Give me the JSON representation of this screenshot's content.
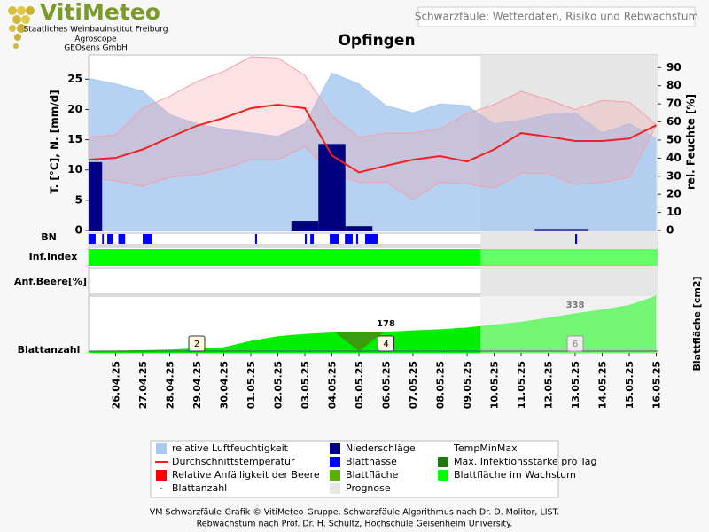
{
  "header": {
    "logo": "VitiMeteo",
    "institutions": [
      "Staatliches Weinbauinstitut Freiburg",
      "Agroscope",
      "GEOsens GmbH"
    ],
    "subtitle": "Schwarzfäule: Wetterdaten, Risiko und Rebwachstum"
  },
  "chart_data": {
    "type": "combo",
    "title": "Opfingen",
    "categories": [
      null,
      "26.04.25",
      "27.04.25",
      "28.04.25",
      "29.04.25",
      "30.04.25",
      "01.05.25",
      "02.05.25",
      "03.05.25",
      "04.05.25",
      "05.05.25",
      "06.05.25",
      "07.05.25",
      "08.05.25",
      "09.05.25",
      "10.05.25",
      "11.05.25",
      "12.05.25",
      "13.05.25",
      "14.05.25",
      "15.05.25",
      "16.05.25"
    ],
    "forecast_from": "10.05.25",
    "forecast_color": "#e6e6e6",
    "y_label": "T. [°C], N. [mm/d]",
    "y2_label": "rel. Feuchte [%]",
    "ylim": [
      0,
      29
    ],
    "yticks": [
      0,
      5,
      10,
      15,
      20,
      25
    ],
    "y2lim": [
      0,
      97
    ],
    "y2ticks": [
      0,
      10,
      20,
      30,
      40,
      50,
      60,
      70,
      80,
      90
    ],
    "series": [
      {
        "type": "area",
        "axis": "y2",
        "color": "#a9c9ee",
        "values": [
          84,
          81,
          77,
          64,
          59,
          56,
          54,
          52,
          59,
          87,
          81,
          69,
          65,
          70,
          69,
          59,
          61,
          64,
          65,
          54,
          59,
          51
        ]
      },
      {
        "type": "band",
        "axis": "y",
        "color": "#f4a0a8",
        "high": [
          15.4,
          15.8,
          20.2,
          22.2,
          24.6,
          26.3,
          28.7,
          28.5,
          25.6,
          19,
          15.4,
          16.1,
          16.1,
          16.8,
          19.3,
          20.8,
          23,
          21.6,
          20,
          21.5,
          21.2,
          17.5
        ],
        "low": [
          8.8,
          8.2,
          7.3,
          8.8,
          9.2,
          10.2,
          11.7,
          11.7,
          13.9,
          9.5,
          8,
          8,
          5.1,
          8,
          7.7,
          7,
          9.5,
          9.5,
          7.6,
          8,
          8.8,
          17.4
        ]
      },
      {
        "type": "bar",
        "axis": "y",
        "color": "#000080",
        "values": [
          11.3,
          0,
          0,
          0,
          0,
          0,
          0,
          0,
          1.6,
          14.3,
          0.7,
          0,
          0,
          0,
          0,
          0,
          0,
          0.3,
          0.3,
          0,
          0,
          0
        ]
      },
      {
        "type": "line",
        "axis": "y",
        "color": "#ee2222",
        "values": [
          11.7,
          12,
          13.4,
          15.4,
          17.3,
          18.6,
          20.2,
          20.8,
          20.2,
          12.4,
          9.6,
          10.7,
          11.7,
          12.3,
          11.4,
          13.4,
          16.1,
          15.5,
          14.8,
          14.8,
          15.2,
          17.4
        ]
      }
    ],
    "rows": {
      "bn": {
        "label": "BN",
        "color": "#0000ff",
        "periods": [
          [
            0,
            0.26
          ],
          [
            0.5,
            0.56
          ],
          [
            0.69,
            0.89
          ],
          [
            1.1,
            1.35
          ],
          [
            2,
            2.36
          ],
          [
            6.16,
            6.23
          ],
          [
            8,
            8.07
          ],
          [
            8.2,
            8.33
          ],
          [
            8.92,
            9.25
          ],
          [
            9.48,
            9.77
          ],
          [
            9.9,
            9.97
          ],
          [
            10.23,
            10.69
          ],
          [
            18,
            18.07
          ]
        ]
      },
      "infection": {
        "label": "Inf.Index",
        "color": "#00ff00"
      },
      "berry": {
        "label": "Anf.Beere[%]"
      }
    },
    "leaf_area": {
      "y_label": "Blattfläche [cm2]",
      "ylim": [
        0,
        490
      ],
      "color": "#00ee00",
      "values": [
        15,
        16,
        20,
        25,
        35,
        45,
        100,
        140,
        160,
        172,
        175,
        178,
        190,
        200,
        215,
        240,
        265,
        300,
        338,
        370,
        410,
        490
      ],
      "value_labels": [
        null,
        null,
        null,
        null,
        null,
        null,
        null,
        null,
        null,
        null,
        null,
        "178",
        null,
        null,
        null,
        null,
        null,
        null,
        "338",
        null,
        null,
        null
      ],
      "max_infection_day": "05.05.25",
      "max_infection_color": "#3a9a10"
    },
    "leaf_counts": {
      "label": "Blattanzahl",
      "x": [
        "29.04.25",
        "06.05.25",
        "13.05.25"
      ],
      "values": [
        2,
        4,
        6
      ]
    }
  },
  "legend": [
    {
      "name": "relative Luftfeuchtigkeit",
      "symbol": "square",
      "color": "#a9c9ee"
    },
    {
      "name": "Niederschläge",
      "symbol": "square",
      "color": "#000080"
    },
    {
      "name": "TempMinMax",
      "symbol": "none",
      "color": "#f4a0a8"
    },
    {
      "name": "Durchschnittstemperatur",
      "symbol": "line",
      "color": "#ee2222"
    },
    {
      "name": "Blattnässe",
      "symbol": "square",
      "color": "#0000ff"
    },
    {
      "name": "Max. Infektionsstärke pro Tag",
      "symbol": "square",
      "color": "#1a7a10"
    },
    {
      "name": "Relative Anfälligkeit der Beere",
      "symbol": "square",
      "color": "#ff0000"
    },
    {
      "name": "Blattfläche",
      "symbol": "square",
      "color": "#55b000"
    },
    {
      "name": "Blattfläche im Wachstum",
      "symbol": "square",
      "color": "#00ff00"
    },
    {
      "name": "Blattanzahl",
      "symbol": "dot",
      "color": "#444444"
    },
    {
      "name": "Prognose",
      "symbol": "square",
      "color": "#e6e6e6"
    }
  ],
  "footer": [
    "VM Schwarzfäule-Grafik © VitiMeteo-Gruppe. Schwarzfäule-Algorithmus nach Dr. D. Molitor, LIST.",
    "Rebwachstum nach Prof. Dr. H. Schultz, Hochschule Geisenheim University."
  ]
}
